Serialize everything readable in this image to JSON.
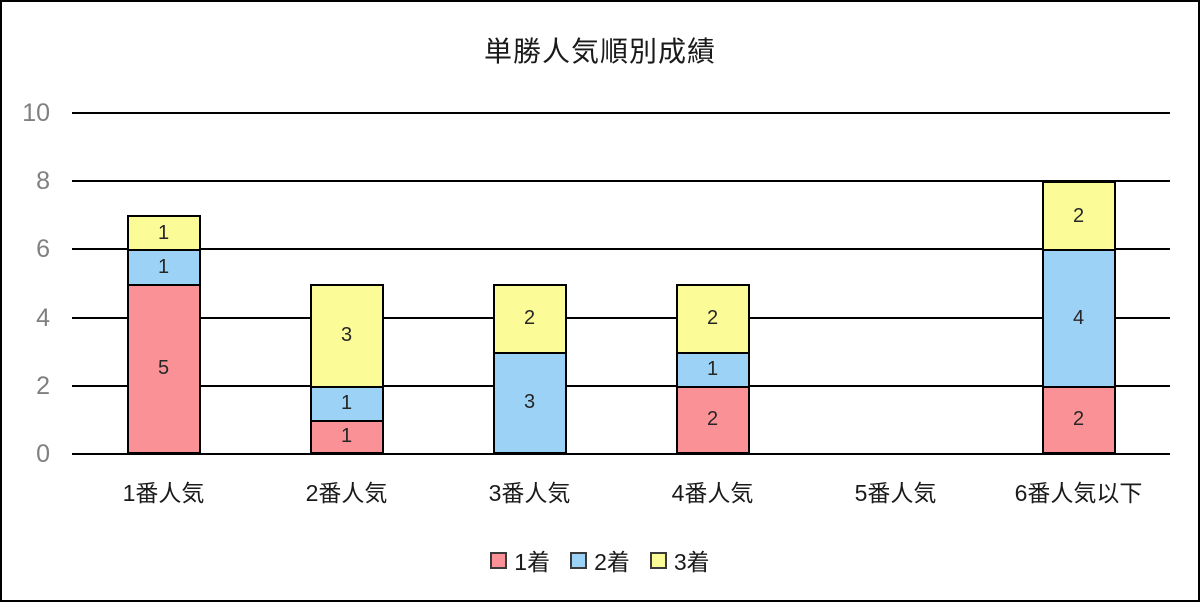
{
  "chart_data": {
    "type": "bar",
    "stacked": true,
    "title": "単勝人気順別成績",
    "categories": [
      "1番人気",
      "2番人気",
      "3番人気",
      "4番人気",
      "5番人気",
      "6番人気以下"
    ],
    "series": [
      {
        "name": "1着",
        "color": "#FA9196",
        "values": [
          5,
          1,
          0,
          2,
          0,
          2
        ]
      },
      {
        "name": "2着",
        "color": "#9DD2F7",
        "values": [
          1,
          1,
          3,
          1,
          0,
          4
        ]
      },
      {
        "name": "3着",
        "color": "#FBFB98",
        "values": [
          1,
          3,
          2,
          2,
          0,
          2
        ]
      }
    ],
    "ylim": [
      0,
      10
    ],
    "yticks": [
      0,
      2,
      4,
      6,
      8,
      10
    ],
    "grid": true,
    "bar_value_labels": true,
    "legend_position": "bottom",
    "colors": {
      "gridline": "#000000",
      "ytick_label": "#808080",
      "text": "#1a1a1a",
      "bar_border": "#000000"
    }
  }
}
